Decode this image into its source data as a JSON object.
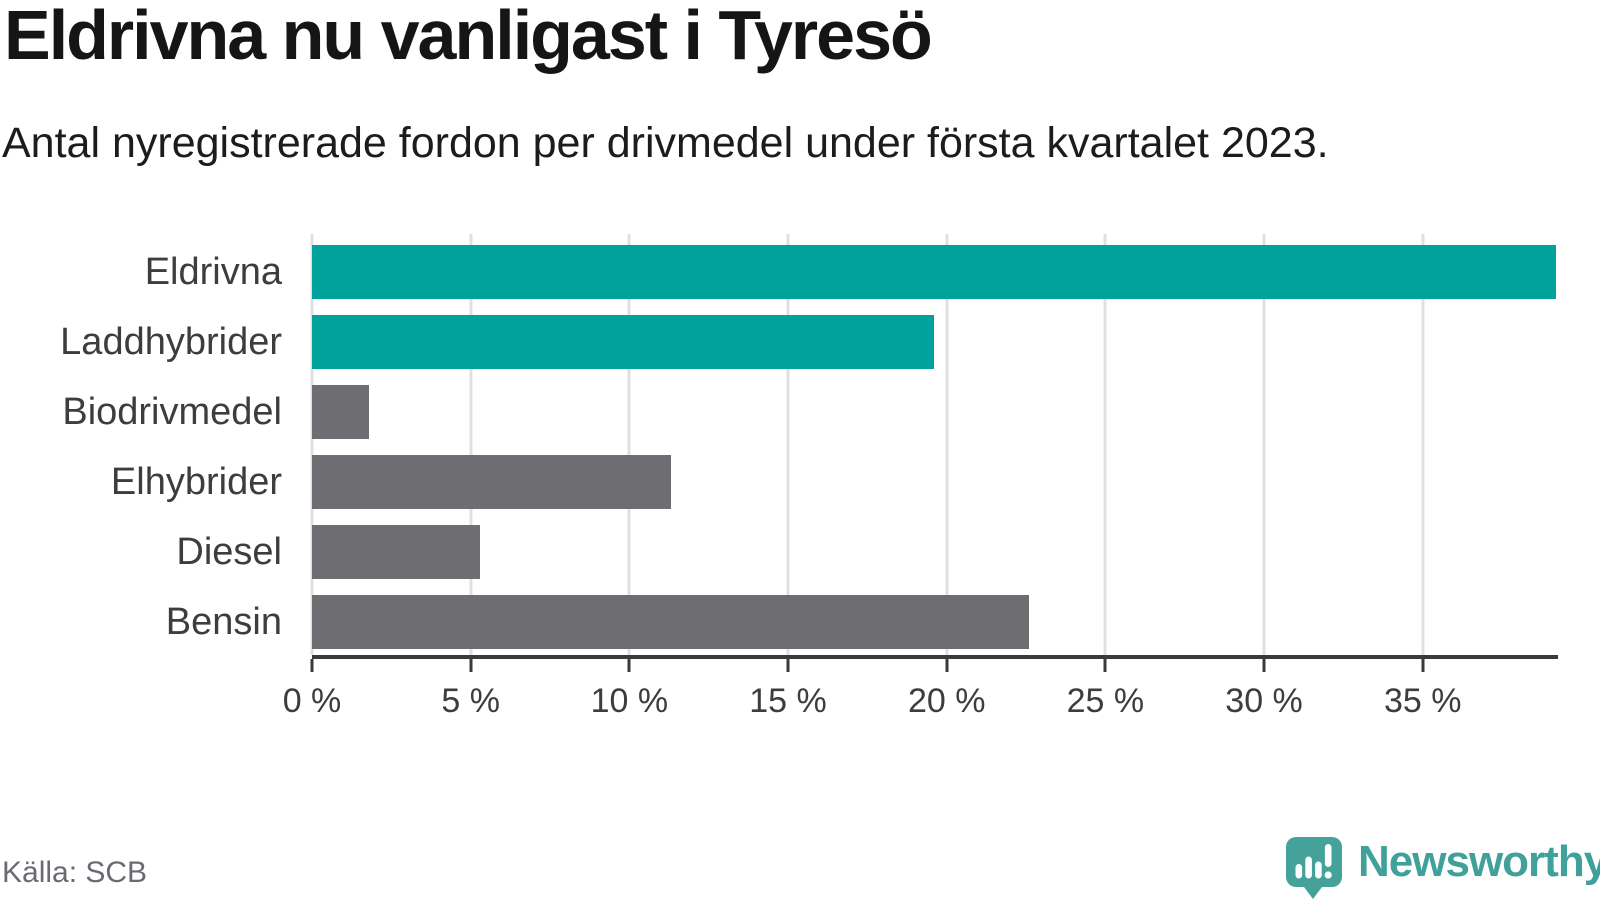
{
  "header": {
    "title": "Eldrivna nu vanligast i Tyresö",
    "subtitle": "Antal nyregistrerade fordon per drivmedel under första kvartalet 2023."
  },
  "chart_data": {
    "type": "bar",
    "orientation": "horizontal",
    "title": "Eldrivna nu vanligast i Tyresö",
    "subtitle": "Antal nyregistrerade fordon per drivmedel under första kvartalet 2023.",
    "categories": [
      "Eldrivna",
      "Laddhybrider",
      "Biodrivmedel",
      "Elhybrider",
      "Diesel",
      "Bensin"
    ],
    "values": [
      39.2,
      19.6,
      1.8,
      11.3,
      5.3,
      22.6
    ],
    "unit": "%",
    "bar_colors": [
      "#00a29b",
      "#00a29b",
      "#6d6d72",
      "#6d6d72",
      "#6d6d72",
      "#6d6d72"
    ],
    "xlim": [
      0,
      39.2
    ],
    "x_ticks": [
      0,
      5,
      10,
      15,
      20,
      25,
      30,
      35
    ],
    "x_tick_labels": [
      "0 %",
      "5 %",
      "10 %",
      "15 %",
      "20 %",
      "25 %",
      "30 %",
      "35 %"
    ],
    "grid": "vertical-only",
    "legend": "none"
  },
  "footer": {
    "source": "Källa: SCB",
    "brand": "Newsworthy"
  },
  "colors": {
    "accent_teal": "#00a29b",
    "bar_gray": "#6d6d72",
    "gridline": "#e0e0e0",
    "axis": "#3a3a3a",
    "title_text": "#151515",
    "label_text": "#3d3d3d",
    "muted_text": "#6a6a75",
    "logo_teal": "#45a29a"
  },
  "icons": {
    "brand_logo": "newsworthy-speech-bubble-bar-chart-icon"
  }
}
